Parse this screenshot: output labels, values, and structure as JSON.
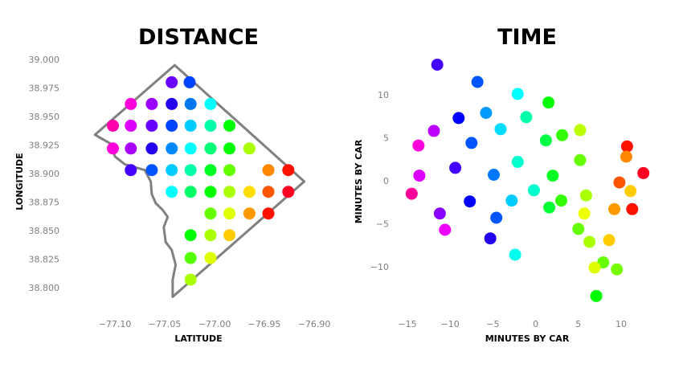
{
  "chart_data": [
    {
      "type": "scatter",
      "title": "DISTANCE",
      "xlabel": "LATITUDE",
      "ylabel": "LONGITUDE",
      "xlim": [
        -77.125,
        -76.9
      ],
      "ylim": [
        38.79,
        39.005
      ],
      "xticks": [
        "−77.10",
        "−77.05",
        "−77.00",
        "−76.95",
        "−76.90"
      ],
      "yticks": [
        "39.000",
        "38.975",
        "38.950",
        "38.925",
        "38.900",
        "38.875",
        "38.850",
        "38.825",
        "38.800"
      ],
      "boundary": [
        [
          -77.04,
          38.995
        ],
        [
          -76.91,
          38.893
        ],
        [
          -77.042,
          38.792
        ],
        [
          -77.042,
          38.807
        ],
        [
          -77.039,
          38.82
        ],
        [
          -77.043,
          38.833
        ],
        [
          -77.049,
          38.84
        ],
        [
          -77.051,
          38.853
        ],
        [
          -77.047,
          38.862
        ],
        [
          -77.052,
          38.868
        ],
        [
          -77.059,
          38.874
        ],
        [
          -77.063,
          38.882
        ],
        [
          -77.064,
          38.893
        ],
        [
          -77.07,
          38.903
        ],
        [
          -77.09,
          38.908
        ],
        [
          -77.1,
          38.915
        ],
        [
          -77.104,
          38.926
        ],
        [
          -77.12,
          38.934
        ]
      ],
      "points": [
        {
          "x": -77.043,
          "y": 38.98,
          "c": "#6a00ff"
        },
        {
          "x": -77.025,
          "y": 38.98,
          "c": "#0044ff"
        },
        {
          "x": -77.084,
          "y": 38.961,
          "c": "#ff00dd"
        },
        {
          "x": -77.063,
          "y": 38.961,
          "c": "#9900ff"
        },
        {
          "x": -77.043,
          "y": 38.961,
          "c": "#2200ee"
        },
        {
          "x": -77.024,
          "y": 38.961,
          "c": "#0077ee"
        },
        {
          "x": -77.004,
          "y": 38.961,
          "c": "#00ffff"
        },
        {
          "x": -77.102,
          "y": 38.942,
          "c": "#ff00aa"
        },
        {
          "x": -77.084,
          "y": 38.942,
          "c": "#dd00ff"
        },
        {
          "x": -77.063,
          "y": 38.942,
          "c": "#6600ff"
        },
        {
          "x": -77.043,
          "y": 38.942,
          "c": "#0044ff"
        },
        {
          "x": -77.024,
          "y": 38.942,
          "c": "#00ccff"
        },
        {
          "x": -77.004,
          "y": 38.942,
          "c": "#00ffaa"
        },
        {
          "x": -76.985,
          "y": 38.942,
          "c": "#00ff00"
        },
        {
          "x": -77.102,
          "y": 38.922,
          "c": "#ff00dd"
        },
        {
          "x": -77.084,
          "y": 38.922,
          "c": "#aa00ff"
        },
        {
          "x": -77.063,
          "y": 38.922,
          "c": "#2200ee"
        },
        {
          "x": -77.043,
          "y": 38.922,
          "c": "#0088ff"
        },
        {
          "x": -77.024,
          "y": 38.922,
          "c": "#00ffff"
        },
        {
          "x": -77.004,
          "y": 38.922,
          "c": "#00ff77"
        },
        {
          "x": -76.985,
          "y": 38.922,
          "c": "#00ff00"
        },
        {
          "x": -76.965,
          "y": 38.922,
          "c": "#aaff00"
        },
        {
          "x": -77.084,
          "y": 38.903,
          "c": "#4400ff"
        },
        {
          "x": -77.063,
          "y": 38.903,
          "c": "#0055ff"
        },
        {
          "x": -77.043,
          "y": 38.903,
          "c": "#00ccff"
        },
        {
          "x": -77.024,
          "y": 38.903,
          "c": "#00ffaa"
        },
        {
          "x": -77.004,
          "y": 38.903,
          "c": "#00ff22"
        },
        {
          "x": -76.985,
          "y": 38.903,
          "c": "#66ff00"
        },
        {
          "x": -76.946,
          "y": 38.903,
          "c": "#ff8800"
        },
        {
          "x": -76.926,
          "y": 38.903,
          "c": "#ff1100"
        },
        {
          "x": -77.043,
          "y": 38.884,
          "c": "#00ffff"
        },
        {
          "x": -77.024,
          "y": 38.884,
          "c": "#00ff66"
        },
        {
          "x": -77.004,
          "y": 38.884,
          "c": "#00ff00"
        },
        {
          "x": -76.985,
          "y": 38.884,
          "c": "#aaff00"
        },
        {
          "x": -76.965,
          "y": 38.884,
          "c": "#ffdd00"
        },
        {
          "x": -76.946,
          "y": 38.884,
          "c": "#ff5500"
        },
        {
          "x": -76.926,
          "y": 38.884,
          "c": "#ff0022"
        },
        {
          "x": -77.004,
          "y": 38.865,
          "c": "#66ff00"
        },
        {
          "x": -76.985,
          "y": 38.865,
          "c": "#ddff00"
        },
        {
          "x": -76.965,
          "y": 38.865,
          "c": "#ff9900"
        },
        {
          "x": -76.946,
          "y": 38.865,
          "c": "#ff1100"
        },
        {
          "x": -77.024,
          "y": 38.846,
          "c": "#00ff00"
        },
        {
          "x": -77.004,
          "y": 38.846,
          "c": "#aaff00"
        },
        {
          "x": -76.985,
          "y": 38.846,
          "c": "#ffcc00"
        },
        {
          "x": -77.024,
          "y": 38.826,
          "c": "#55ff00"
        },
        {
          "x": -77.004,
          "y": 38.826,
          "c": "#ddff00"
        },
        {
          "x": -77.024,
          "y": 38.807,
          "c": "#aaff00"
        }
      ]
    },
    {
      "type": "scatter",
      "title": "TIME",
      "xlabel": "MINUTES BY CAR",
      "ylabel": "MINUTES BY CAR",
      "xlim": [
        -17,
        14.5
      ],
      "ylim": [
        -15.5,
        15
      ],
      "xticks": [
        "−15",
        "−10",
        "−5",
        "0",
        "5",
        "10"
      ],
      "yticks": [
        "10",
        "5",
        "0",
        "−5",
        "−10"
      ],
      "points": [
        {
          "x": -11.5,
          "y": 13.5,
          "c": "#4400ff"
        },
        {
          "x": -6.8,
          "y": 11.5,
          "c": "#0055ff"
        },
        {
          "x": -2.1,
          "y": 10.1,
          "c": "#00ffff"
        },
        {
          "x": 1.5,
          "y": 9.1,
          "c": "#00ff00"
        },
        {
          "x": -5.8,
          "y": 7.9,
          "c": "#0099ff"
        },
        {
          "x": -9.0,
          "y": 7.3,
          "c": "#0000ff"
        },
        {
          "x": -1.1,
          "y": 7.4,
          "c": "#00ffaa"
        },
        {
          "x": -11.9,
          "y": 5.8,
          "c": "#bb00ff"
        },
        {
          "x": -4.1,
          "y": 6.0,
          "c": "#00ddff"
        },
        {
          "x": 3.1,
          "y": 5.3,
          "c": "#33ff00"
        },
        {
          "x": 5.2,
          "y": 5.9,
          "c": "#bbff00"
        },
        {
          "x": 1.2,
          "y": 4.7,
          "c": "#00ff44"
        },
        {
          "x": -7.5,
          "y": 4.4,
          "c": "#0055ff"
        },
        {
          "x": -13.7,
          "y": 4.1,
          "c": "#ff00dd"
        },
        {
          "x": 10.7,
          "y": 4.0,
          "c": "#ff1100"
        },
        {
          "x": 10.6,
          "y": 2.8,
          "c": "#ff8800"
        },
        {
          "x": 5.2,
          "y": 2.4,
          "c": "#66ff00"
        },
        {
          "x": -2.1,
          "y": 2.2,
          "c": "#00ffcc"
        },
        {
          "x": -9.4,
          "y": 1.5,
          "c": "#4400ff"
        },
        {
          "x": -13.6,
          "y": 0.6,
          "c": "#dd00ff"
        },
        {
          "x": -4.9,
          "y": 0.7,
          "c": "#0077ff"
        },
        {
          "x": 2.0,
          "y": 0.6,
          "c": "#00ff22"
        },
        {
          "x": 12.6,
          "y": 0.9,
          "c": "#ff0022"
        },
        {
          "x": 9.8,
          "y": -0.2,
          "c": "#ff5500"
        },
        {
          "x": -0.2,
          "y": -1.1,
          "c": "#00ffcc"
        },
        {
          "x": 11.1,
          "y": -1.2,
          "c": "#ffcc00"
        },
        {
          "x": -14.5,
          "y": -1.5,
          "c": "#ff0099"
        },
        {
          "x": 5.9,
          "y": -1.7,
          "c": "#aaff00"
        },
        {
          "x": -7.7,
          "y": -2.4,
          "c": "#0000ff"
        },
        {
          "x": -2.8,
          "y": -2.3,
          "c": "#00ccff"
        },
        {
          "x": 3.0,
          "y": -2.3,
          "c": "#33ff00"
        },
        {
          "x": 1.6,
          "y": -3.1,
          "c": "#00ff33"
        },
        {
          "x": 9.2,
          "y": -3.3,
          "c": "#ff9900"
        },
        {
          "x": 11.3,
          "y": -3.3,
          "c": "#ff1100"
        },
        {
          "x": -11.2,
          "y": -3.8,
          "c": "#8800ff"
        },
        {
          "x": 5.7,
          "y": -3.8,
          "c": "#eeff00"
        },
        {
          "x": -4.6,
          "y": -4.3,
          "c": "#0055ff"
        },
        {
          "x": -10.6,
          "y": -5.7,
          "c": "#ee00ff"
        },
        {
          "x": 5.0,
          "y": -5.6,
          "c": "#66ff00"
        },
        {
          "x": -5.3,
          "y": -6.7,
          "c": "#2200ee"
        },
        {
          "x": 6.3,
          "y": -7.1,
          "c": "#aaff00"
        },
        {
          "x": 8.6,
          "y": -6.9,
          "c": "#ffcc00"
        },
        {
          "x": -2.4,
          "y": -8.6,
          "c": "#00ffee"
        },
        {
          "x": 7.9,
          "y": -9.5,
          "c": "#66ff00"
        },
        {
          "x": 6.9,
          "y": -10.1,
          "c": "#ddff00"
        },
        {
          "x": 9.5,
          "y": -10.3,
          "c": "#77ff00"
        },
        {
          "x": 7.1,
          "y": -13.4,
          "c": "#00ff00"
        }
      ]
    }
  ]
}
